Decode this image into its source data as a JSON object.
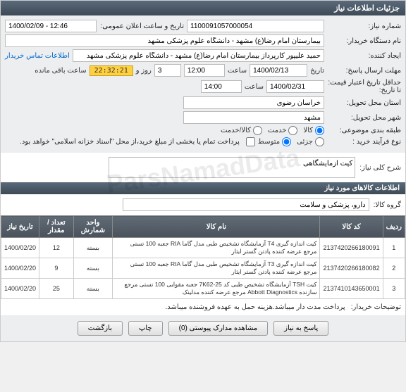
{
  "header": "جزئیات اطلاعات نیاز",
  "labels": {
    "req_no": "شماره نیاز:",
    "ann_dt": "تاریخ و ساعت اعلان عمومی:",
    "buyer_org": "نام دستگاه خریدار:",
    "creator": "ایجاد کننده:",
    "contact": "اطلاعات تماس خریدار",
    "resp_deadline": "مهلت ارسال پاسخ:",
    "date": "تاریخ",
    "hour": "ساعت",
    "day": "روز و",
    "remain": "ساعت باقی مانده",
    "valid_until": "حداقل تاریخ اعتبار قیمت: تا تاریخ:",
    "province": "استان محل تحویل:",
    "city": "شهر محل تحویل:",
    "budget": "طبقه بندی موضوعی:",
    "goods": "کالا",
    "service": "خدمت",
    "goods_service": "کالا/خدمت",
    "process": "نوع فرآیند خرید :",
    "low": "جزئی",
    "med": "متوسط",
    "pay_note": "پرداخت تمام یا بخشی از مبلغ خرید،از محل \"اسناد خزانه اسلامی\" خواهد بود.",
    "req_title": "شرح کلی نیاز:",
    "goods_info": "اطلاعات کالاهای مورد نیاز",
    "group": "گروه کالا:",
    "col_row": "ردیف",
    "col_code": "کد کالا",
    "col_name": "نام کالا",
    "col_unit": "واحد شمارش",
    "col_qty": "تعداد / مقدار",
    "col_date": "تاریخ نیاز",
    "buyer_notes": "توضیحات خریدار:"
  },
  "values": {
    "req_no": "1100091057000054",
    "ann_dt": "1400/02/09 - 12:46",
    "buyer_org": "بیمارستان امام رضا(ع) مشهد - دانشگاه علوم پزشکی مشهد",
    "creator": "حمید علیپور کارپرداز بیمارستان امام رضا(ع) مشهد - دانشگاه علوم پزشکی مشهد",
    "resp_date": "1400/02/13",
    "resp_hour": "12:00",
    "resp_day": "3",
    "countdown": "22:32:21",
    "valid_date": "1400/02/31",
    "valid_hour": "14:00",
    "province": "خراسان رضوی",
    "city": "مشهد",
    "req_title": "کیت ازمایشگاهی",
    "group": "دارو، پزشکی و سلامت",
    "buyer_notes": "پرداخت مدت دار میباشد.هزینه حمل به عهده فروشنده میباشد."
  },
  "rows": [
    {
      "n": "1",
      "code": "2137420266180091",
      "name": "کیت اندازه گیری T4 آزمایشگاه تشخیص طبی مدل گاما RIA جعبه 100 تستی مرجع عرضه کننده پادتن گستر ایثار",
      "unit": "بسته",
      "qty": "12",
      "date": "1400/02/20"
    },
    {
      "n": "2",
      "code": "2137420266180082",
      "name": "کیت اندازه گیری T3 آزمایشگاه تشخیص طبی مدل گاما RIA جعبه 100 تستی مرجع عرضه کننده پادتن گستر ایثار",
      "unit": "بسته",
      "qty": "9",
      "date": "1400/02/20"
    },
    {
      "n": "3",
      "code": "2137410143650001",
      "name": "کیت TSH آزمایشگاه تشخیص طبی کد 25-7K62 جعبه مقوایی 100 تستی مرجع سازنده Abbott Diagnostics مرجع عرضه کننده مدلینک",
      "unit": "بسته",
      "qty": "25",
      "date": "1400/02/20"
    }
  ],
  "buttons": {
    "respond": "پاسخ به نیاز",
    "attach": "مشاهده مدارک پیوستی (0)",
    "print": "چاپ",
    "back": "بازگشت"
  },
  "watermark": "ParsNamadData"
}
